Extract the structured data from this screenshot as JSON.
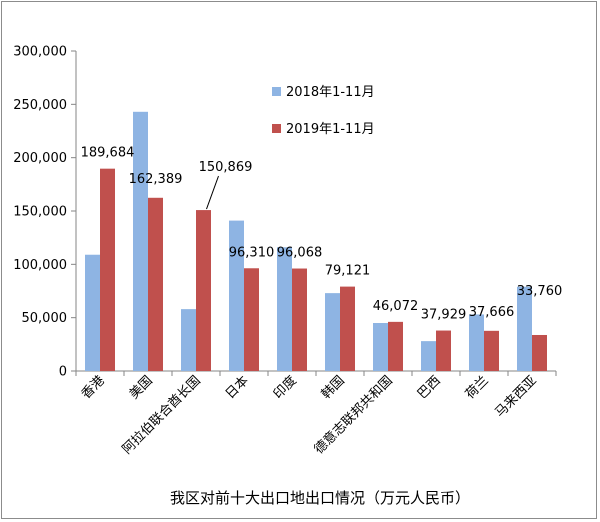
{
  "chart_data": {
    "type": "bar",
    "title": "我区对前十大出口地出口情况（万元人民币）",
    "categories": [
      "香港",
      "美国",
      "阿拉伯联合酋长国",
      "日本",
      "印度",
      "韩国",
      "德意志联邦共和国",
      "巴西",
      "荷兰",
      "马来西亚"
    ],
    "series": [
      {
        "name": "2018年1-11月",
        "color": "#8eb4e3",
        "values": [
          109000,
          243000,
          58000,
          141000,
          116000,
          73000,
          45000,
          28000,
          53000,
          79000
        ],
        "labels": [
          "",
          "",
          "",
          "",
          "",
          "",
          "",
          "",
          "",
          ""
        ]
      },
      {
        "name": "2019年1-11月",
        "color": "#c0504d",
        "values": [
          189684,
          162389,
          150869,
          96310,
          96068,
          79121,
          46072,
          37929,
          37666,
          33760
        ],
        "labels": [
          "189,684",
          "162,389",
          "150,869",
          "96,310",
          "96,068",
          "79,121",
          "46,072",
          "37,929",
          "37,666",
          "33,760"
        ]
      }
    ],
    "ylim": [
      0,
      300000
    ],
    "yticks": [
      "0",
      "50,000",
      "100,000",
      "150,000",
      "200,000",
      "250,000",
      "300,000"
    ],
    "grid": false,
    "legend_position": "top-center"
  }
}
